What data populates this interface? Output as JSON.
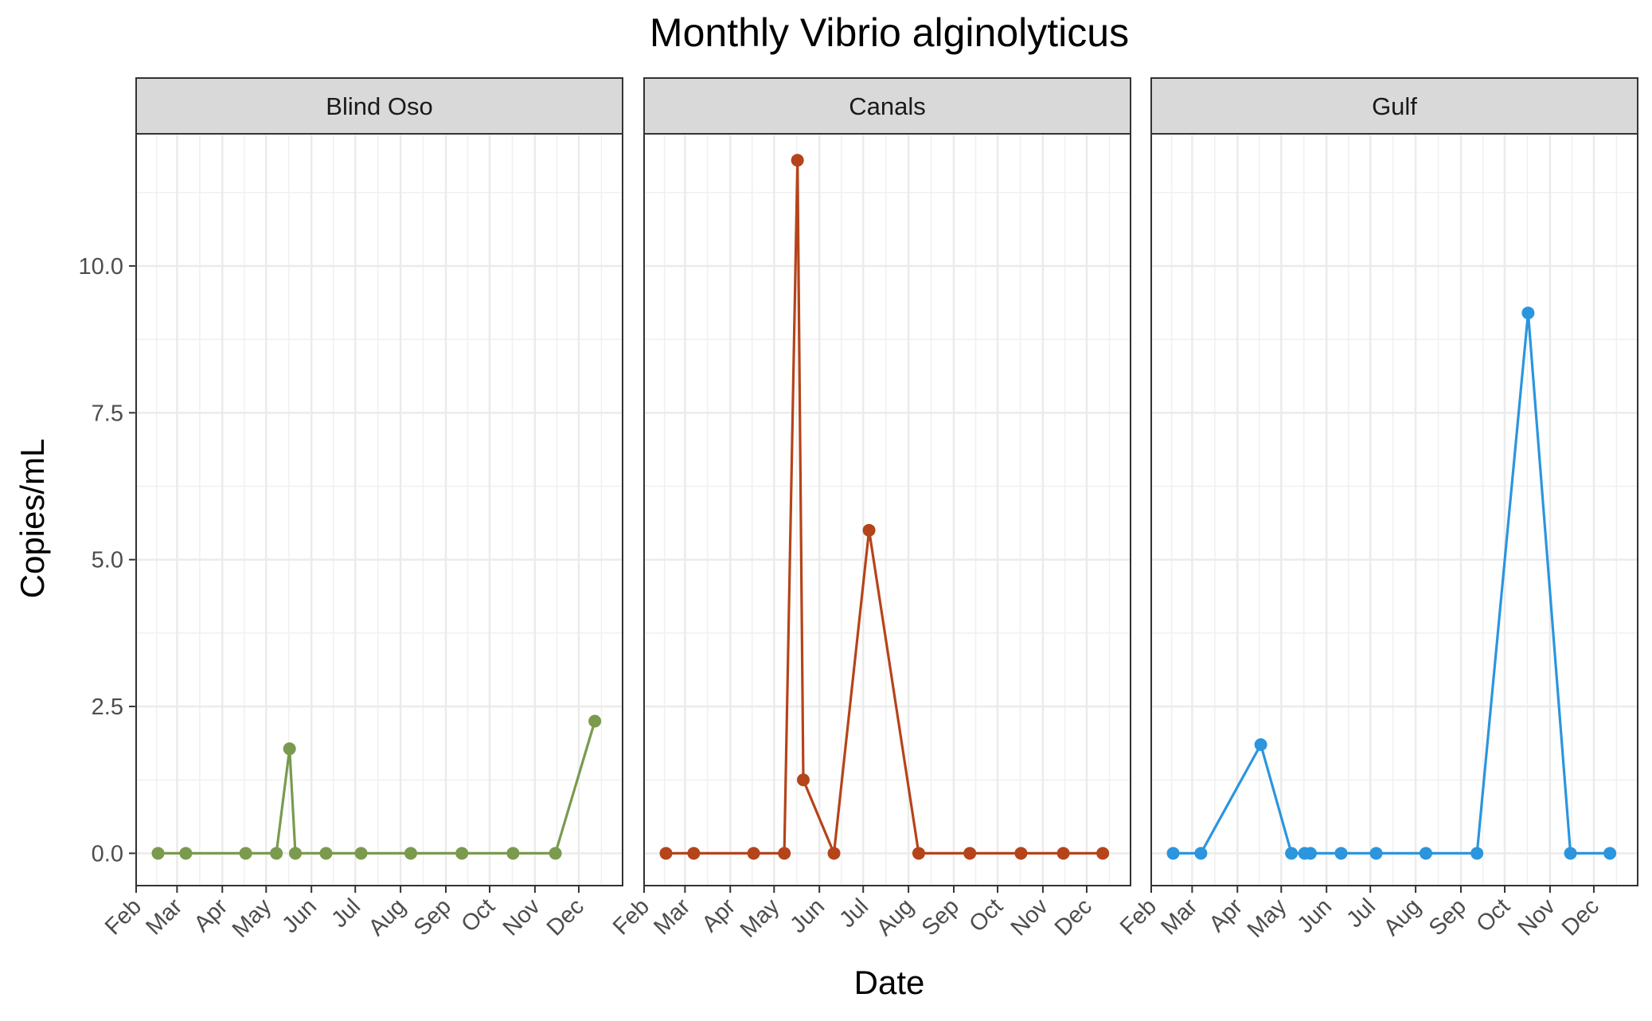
{
  "chart_data": {
    "type": "line",
    "title": "Monthly Vibrio alginolyticus",
    "xlabel": "Date",
    "ylabel": "Copies/mL",
    "ylim": [
      -0.55,
      12.25
    ],
    "xlim": [
      "2023-02-01",
      "2023-12-31"
    ],
    "y_ticks": [
      0.0,
      2.5,
      5.0,
      7.5,
      10.0
    ],
    "y_tick_labels": [
      "0.0",
      "2.5",
      "5.0",
      "7.5",
      "10.0"
    ],
    "x_ticks": [
      "2023-02-01",
      "2023-03-01",
      "2023-04-01",
      "2023-05-01",
      "2023-06-01",
      "2023-07-01",
      "2023-08-01",
      "2023-09-01",
      "2023-10-01",
      "2023-11-01",
      "2023-12-01"
    ],
    "x_tick_labels": [
      "Feb",
      "Mar",
      "Apr",
      "May",
      "Jun",
      "Jul",
      "Aug",
      "Sep",
      "Oct",
      "Nov",
      "Dec"
    ],
    "grid": true,
    "legend": "none",
    "panels": [
      {
        "name": "Blind Oso",
        "color": "#7a9a4e",
        "points": [
          {
            "x": "2023-02-16",
            "y": 0
          },
          {
            "x": "2023-03-07",
            "y": 0
          },
          {
            "x": "2023-04-17",
            "y": 0
          },
          {
            "x": "2023-05-08",
            "y": 0
          },
          {
            "x": "2023-05-17",
            "y": 1.78
          },
          {
            "x": "2023-05-21",
            "y": 0
          },
          {
            "x": "2023-06-11",
            "y": 0
          },
          {
            "x": "2023-07-05",
            "y": 0
          },
          {
            "x": "2023-08-08",
            "y": 0
          },
          {
            "x": "2023-09-12",
            "y": 0
          },
          {
            "x": "2023-10-17",
            "y": 0
          },
          {
            "x": "2023-11-15",
            "y": 0
          },
          {
            "x": "2023-12-12",
            "y": 2.25
          }
        ]
      },
      {
        "name": "Canals",
        "color": "#b5441a",
        "points": [
          {
            "x": "2023-02-16",
            "y": 0
          },
          {
            "x": "2023-03-07",
            "y": 0
          },
          {
            "x": "2023-04-17",
            "y": 0
          },
          {
            "x": "2023-05-08",
            "y": 0
          },
          {
            "x": "2023-05-17",
            "y": 11.8
          },
          {
            "x": "2023-05-21",
            "y": 1.25
          },
          {
            "x": "2023-06-11",
            "y": 0
          },
          {
            "x": "2023-07-05",
            "y": 5.5
          },
          {
            "x": "2023-08-08",
            "y": 0
          },
          {
            "x": "2023-09-12",
            "y": 0
          },
          {
            "x": "2023-10-17",
            "y": 0
          },
          {
            "x": "2023-11-15",
            "y": 0
          },
          {
            "x": "2023-12-12",
            "y": 0
          }
        ]
      },
      {
        "name": "Gulf",
        "color": "#2b95de",
        "points": [
          {
            "x": "2023-02-16",
            "y": 0
          },
          {
            "x": "2023-03-07",
            "y": 0
          },
          {
            "x": "2023-04-17",
            "y": 1.85
          },
          {
            "x": "2023-05-08",
            "y": 0
          },
          {
            "x": "2023-05-17",
            "y": 0
          },
          {
            "x": "2023-05-21",
            "y": 0
          },
          {
            "x": "2023-06-11",
            "y": 0
          },
          {
            "x": "2023-07-05",
            "y": 0
          },
          {
            "x": "2023-08-08",
            "y": 0
          },
          {
            "x": "2023-09-12",
            "y": 0
          },
          {
            "x": "2023-10-17",
            "y": 9.2
          },
          {
            "x": "2023-11-15",
            "y": 0
          },
          {
            "x": "2023-12-12",
            "y": 0
          }
        ]
      }
    ]
  }
}
